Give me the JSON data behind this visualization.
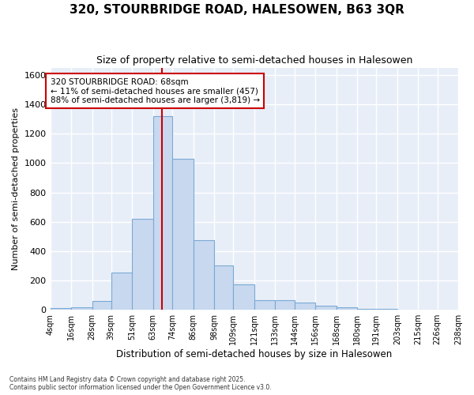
{
  "title": "320, STOURBRIDGE ROAD, HALESOWEN, B63 3QR",
  "subtitle": "Size of property relative to semi-detached houses in Halesowen",
  "xlabel": "Distribution of semi-detached houses by size in Halesowen",
  "ylabel": "Number of semi-detached properties",
  "annotation_title": "320 STOURBRIDGE ROAD: 68sqm",
  "annotation_line1": "← 11% of semi-detached houses are smaller (457)",
  "annotation_line2": "88% of semi-detached houses are larger (3,819) →",
  "red_line_x": 68,
  "bin_edges": [
    4,
    16,
    28,
    39,
    51,
    63,
    74,
    86,
    98,
    109,
    121,
    133,
    144,
    156,
    168,
    180,
    191,
    203,
    215,
    226,
    238
  ],
  "bin_labels": [
    "4sqm",
    "16sqm",
    "28sqm",
    "39sqm",
    "51sqm",
    "63sqm",
    "74sqm",
    "86sqm",
    "98sqm",
    "109sqm",
    "121sqm",
    "133sqm",
    "144sqm",
    "156sqm",
    "168sqm",
    "180sqm",
    "191sqm",
    "203sqm",
    "215sqm",
    "226sqm",
    "238sqm"
  ],
  "bar_heights": [
    10,
    15,
    60,
    255,
    620,
    1320,
    1030,
    475,
    300,
    175,
    65,
    65,
    50,
    30,
    15,
    5,
    4,
    3,
    2,
    2
  ],
  "bar_color": "#c8d8ef",
  "bar_edge_color": "#7aaad4",
  "red_line_color": "#cc0000",
  "plot_bg_color": "#e8eef8",
  "fig_bg_color": "#ffffff",
  "grid_color": "#ffffff",
  "ylim": [
    0,
    1650
  ],
  "yticks": [
    0,
    200,
    400,
    600,
    800,
    1000,
    1200,
    1400,
    1600
  ],
  "footer_line1": "Contains HM Land Registry data © Crown copyright and database right 2025.",
  "footer_line2": "Contains public sector information licensed under the Open Government Licence v3.0."
}
